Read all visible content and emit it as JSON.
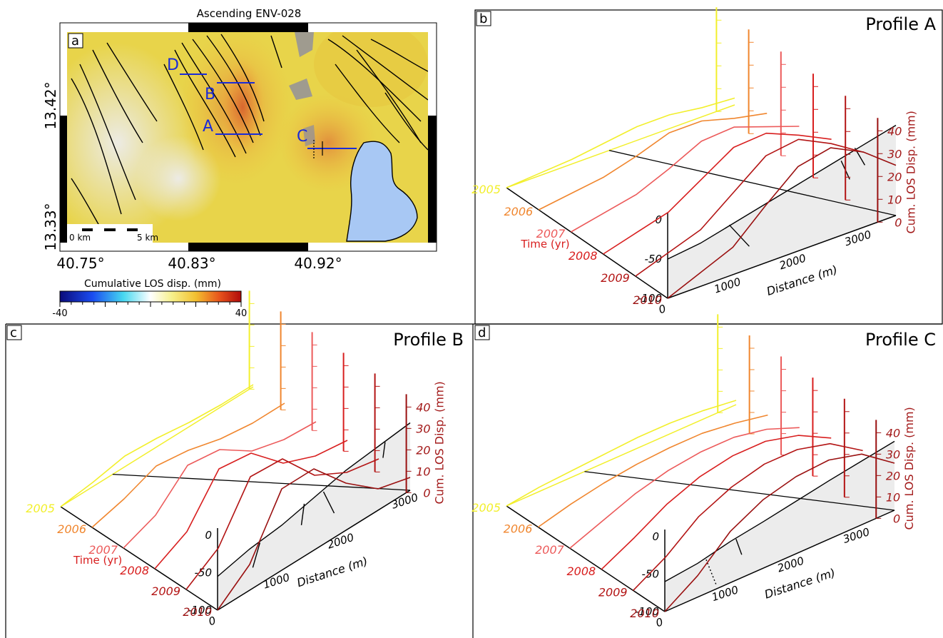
{
  "figure": {
    "colors": {
      "y2005": "#f2ef2c",
      "y2006": "#f0862e",
      "y2007": "#ec5a5a",
      "y2008": "#d81e1e",
      "y2009": "#b31414",
      "y2010": "#9a1010",
      "profile_line": "#1a2bd8",
      "lake": "#a8c8f4",
      "axis_red": "#a31a1a"
    }
  },
  "panel_a": {
    "letter": "a",
    "title": "Ascending ENV-028",
    "lat_labels": [
      "13.42°",
      "13.33°"
    ],
    "lon_labels": [
      "40.75°",
      "40.83°",
      "40.92°"
    ],
    "profile_labels": [
      "A",
      "B",
      "C",
      "D"
    ],
    "scalebar": {
      "left": "0 km",
      "right": "5 km"
    },
    "colorbar": {
      "title": "Cumulative LOS disp. (mm)",
      "min": "-40",
      "max": "40",
      "min_value": -40,
      "max_value": 40
    }
  },
  "chart_data": [
    {
      "type": "line",
      "panel": "b",
      "title": "Profile A",
      "xlabel": "Distance (m)",
      "ylabel": "Cum. LOS Disp. (mm)",
      "zlabel": "Time (yr)",
      "x_ticks": [
        "0",
        "1000",
        "2000",
        "3000"
      ],
      "y_ticks": [
        "0",
        "10",
        "20",
        "30",
        "40"
      ],
      "elev_ticks": [
        "0",
        "-50",
        "-100"
      ],
      "time_ticks": [
        "2005",
        "2006",
        "2007",
        "2008",
        "2009",
        "2010"
      ],
      "x": [
        0,
        500,
        1000,
        1500,
        2000,
        2500,
        3000,
        3500
      ],
      "series": [
        {
          "name": "2005",
          "values": [
            0,
            1,
            2,
            4,
            6,
            6,
            4,
            3
          ]
        },
        {
          "name": "2006",
          "values": [
            0,
            2,
            4,
            8,
            13,
            13,
            9,
            6
          ]
        },
        {
          "name": "2007",
          "values": [
            0,
            3,
            6,
            12,
            19,
            20,
            15,
            10
          ]
        },
        {
          "name": "2008",
          "values": [
            0,
            4,
            8,
            17,
            26,
            27,
            21,
            14
          ]
        },
        {
          "name": "2009",
          "values": [
            0,
            5,
            10,
            21,
            32,
            34,
            27,
            18
          ]
        },
        {
          "name": "2010",
          "values": [
            0,
            6,
            12,
            25,
            37,
            40,
            33,
            22
          ]
        }
      ],
      "topography": [
        -50,
        -45,
        -35,
        -25,
        -15,
        -5,
        5,
        15
      ],
      "ylim": [
        0,
        40
      ],
      "elev_lim": [
        -100,
        0
      ]
    },
    {
      "type": "line",
      "panel": "c",
      "title": "Profile B",
      "xlabel": "Distance (m)",
      "ylabel": "Cum. LOS Disp. (mm)",
      "zlabel": "Time (yr)",
      "x_ticks": [
        "0",
        "1000",
        "2000",
        "3000"
      ],
      "y_ticks": [
        "0",
        "10",
        "20",
        "30",
        "40"
      ],
      "elev_ticks": [
        "0",
        "-50",
        "-100"
      ],
      "time_ticks": [
        "2005",
        "2006",
        "2007",
        "2008",
        "2009",
        "2010"
      ],
      "x": [
        0,
        500,
        1000,
        1500,
        2000,
        2500,
        3000
      ],
      "series": [
        {
          "name": "2005",
          "values": [
            0,
            2,
            5,
            4,
            2,
            1,
            1
          ]
        },
        {
          "name": "2006",
          "values": [
            0,
            4,
            10,
            8,
            4,
            2,
            2
          ]
        },
        {
          "name": "2007",
          "values": [
            0,
            6,
            20,
            18,
            8,
            4,
            3
          ]
        },
        {
          "name": "2008",
          "values": [
            0,
            8,
            28,
            26,
            12,
            6,
            4
          ]
        },
        {
          "name": "2009",
          "values": [
            0,
            10,
            34,
            33,
            16,
            8,
            5
          ]
        },
        {
          "name": "2010",
          "values": [
            0,
            12,
            38,
            38,
            22,
            10,
            6
          ]
        }
      ],
      "topography": [
        -55,
        -45,
        -40,
        -30,
        -20,
        -15,
        -10
      ],
      "ylim": [
        0,
        40
      ],
      "elev_lim": [
        -100,
        0
      ]
    },
    {
      "type": "line",
      "panel": "d",
      "title": "Profile C",
      "xlabel": "Distance (m)",
      "ylabel": "Cum. LOS Disp. (mm)",
      "zlabel": "",
      "x_ticks": [
        "0",
        "1000",
        "2000",
        "3000"
      ],
      "y_ticks": [
        "0",
        "10",
        "20",
        "30",
        "40"
      ],
      "elev_ticks": [
        "0",
        "-50",
        "-100"
      ],
      "time_ticks": [
        "2005",
        "2006",
        "2007",
        "2008",
        "2009",
        "2010"
      ],
      "x": [
        0,
        500,
        1000,
        1500,
        2000,
        2500,
        3000,
        3500
      ],
      "series": [
        {
          "name": "2005",
          "values": [
            0,
            2,
            3,
            4,
            5,
            5,
            4,
            2
          ]
        },
        {
          "name": "2006",
          "values": [
            0,
            4,
            7,
            9,
            10,
            10,
            8,
            5
          ]
        },
        {
          "name": "2007",
          "values": [
            0,
            6,
            12,
            16,
            18,
            18,
            15,
            9
          ]
        },
        {
          "name": "2008",
          "values": [
            0,
            8,
            17,
            23,
            26,
            26,
            22,
            14
          ]
        },
        {
          "name": "2009",
          "values": [
            0,
            9,
            21,
            28,
            32,
            32,
            28,
            18
          ]
        },
        {
          "name": "2010",
          "values": [
            0,
            10,
            24,
            32,
            36,
            37,
            33,
            22
          ]
        }
      ],
      "topography": [
        -60,
        -55,
        -45,
        -38,
        -30,
        -22,
        -15,
        -8
      ],
      "ylim": [
        0,
        40
      ],
      "elev_lim": [
        -100,
        0
      ]
    }
  ]
}
